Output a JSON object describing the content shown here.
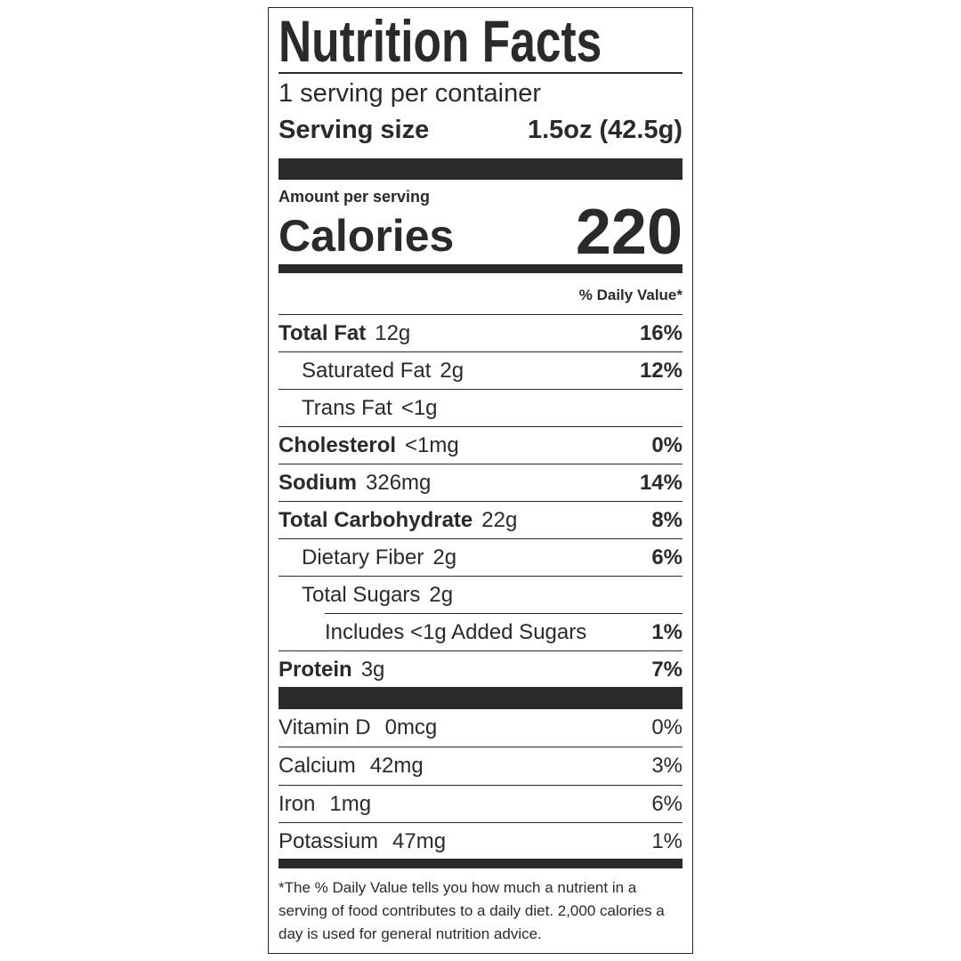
{
  "header": {
    "title": "Nutrition Facts",
    "servings": "1 serving per container",
    "serving_size_label": "Serving size",
    "serving_size_value": "1.5oz (42.5g)"
  },
  "calories": {
    "amount_per_serving": "Amount per serving",
    "label": "Calories",
    "value": "220"
  },
  "daily_value_header": "% Daily Value*",
  "nutrients": [
    {
      "name": "Total Fat",
      "amount": "12g",
      "daily_value": "16%"
    },
    {
      "name": "Saturated Fat",
      "amount": "2g",
      "daily_value": "12%"
    },
    {
      "name": "Trans Fat",
      "amount": "<1g"
    },
    {
      "name": "Cholesterol",
      "amount": "<1mg",
      "daily_value": "0%"
    },
    {
      "name": "Sodium",
      "amount": "326mg",
      "daily_value": "14%"
    },
    {
      "name": "Total Carbohydrate",
      "amount": "22g",
      "daily_value": "8%"
    },
    {
      "name": "Dietary Fiber",
      "amount": "2g",
      "daily_value": "6%"
    },
    {
      "name": "Total Sugars",
      "amount": "2g"
    },
    {
      "name": "Includes <1g Added Sugars",
      "daily_value": "1%"
    },
    {
      "name": "Protein",
      "amount": "3g",
      "daily_value": "7%"
    }
  ],
  "vitamins": [
    {
      "name": "Vitamin D",
      "amount": "0mcg",
      "daily_value": "0%"
    },
    {
      "name": "Calcium",
      "amount": "42mg",
      "daily_value": "3%"
    },
    {
      "name": "Iron",
      "amount": "1mg",
      "daily_value": "6%"
    },
    {
      "name": "Potassium",
      "amount": "47mg",
      "daily_value": "1%"
    }
  ],
  "footnote": "*The % Daily Value tells you how much a nutrient in a serving of food contributes to a daily diet. 2,000 calories a day is used for general nutrition advice."
}
